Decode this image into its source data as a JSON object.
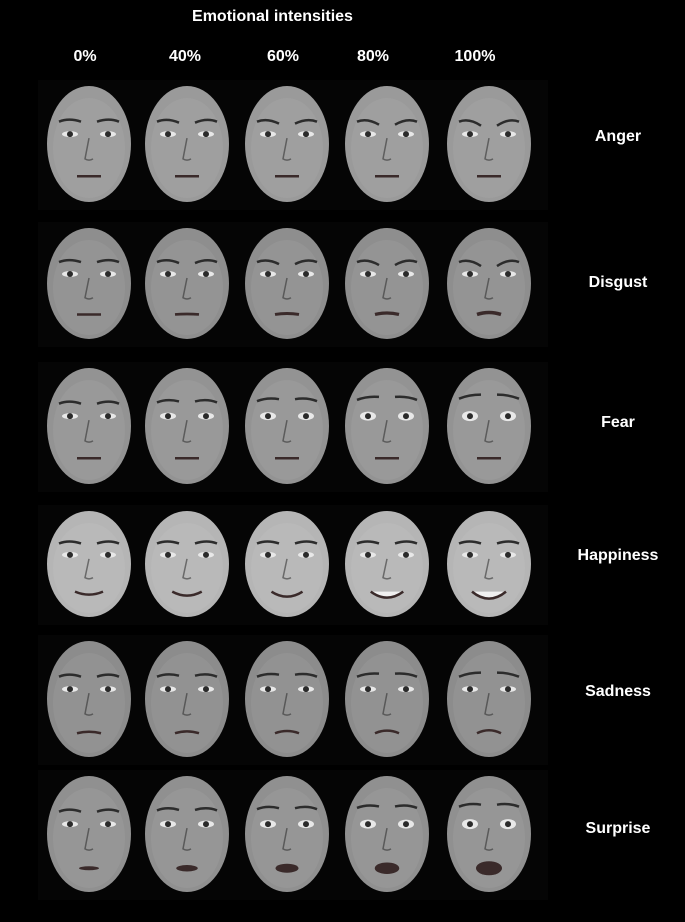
{
  "header": {
    "title": "Emotional intensities",
    "intensities": [
      "0%",
      "40%",
      "60%",
      "80%",
      "100%"
    ]
  },
  "emotions": [
    "Anger",
    "Disgust",
    "Fear",
    "Happiness",
    "Sadness",
    "Surprise"
  ],
  "palette": {
    "background": "#000000",
    "text": "#ffffff",
    "skin_anger": "#9a9a9a",
    "skin_disgust": "#8e8e8e",
    "skin_fear": "#939393",
    "skin_happiness": "#b5b5b5",
    "skin_sadness": "#8c8c8c",
    "skin_surprise": "#909090"
  }
}
